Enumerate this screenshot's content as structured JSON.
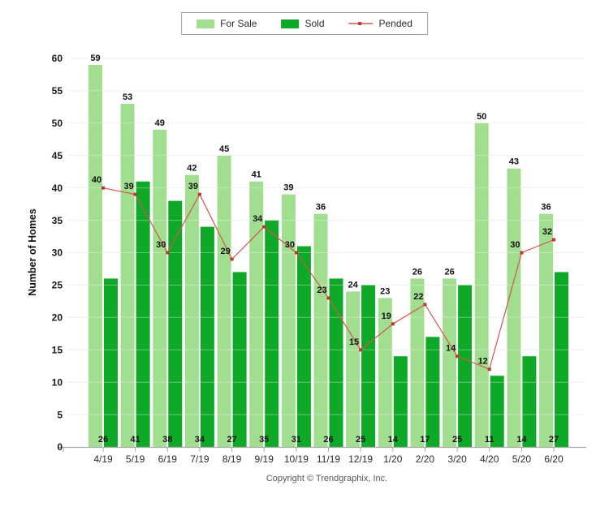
{
  "chart_data": {
    "type": "bar",
    "title": "",
    "categories": [
      "4/19",
      "5/19",
      "6/19",
      "7/19",
      "8/19",
      "9/19",
      "10/19",
      "11/19",
      "12/19",
      "1/20",
      "2/20",
      "3/20",
      "4/20",
      "5/20",
      "6/20"
    ],
    "series": [
      {
        "name": "For Sale",
        "type": "bar",
        "color": "#A2DE90",
        "values": [
          59,
          53,
          49,
          42,
          45,
          41,
          39,
          36,
          24,
          23,
          26,
          26,
          50,
          43,
          36
        ]
      },
      {
        "name": "Sold",
        "type": "bar",
        "color": "#0FA928",
        "values": [
          26,
          41,
          38,
          34,
          27,
          35,
          31,
          26,
          25,
          14,
          17,
          25,
          11,
          14,
          27
        ]
      },
      {
        "name": "Pended",
        "type": "line",
        "color": "#D2564F",
        "marker_color": "#B9392E",
        "values": [
          40,
          39,
          30,
          39,
          29,
          34,
          30,
          23,
          15,
          19,
          22,
          14,
          12,
          30,
          32
        ]
      }
    ],
    "xlabel": "",
    "ylabel": "Number of Homes",
    "ylim": [
      0,
      60
    ],
    "ytick_step": 5,
    "grid": true,
    "legend_position": "top-center",
    "colors": {
      "gridline": "#E8E8E8",
      "axis": "#ABABAB",
      "data_label": "#111111",
      "tick_label": "#2A2A2A"
    }
  },
  "footer": {
    "copyright": "Copyright © Trendgraphix, Inc."
  }
}
